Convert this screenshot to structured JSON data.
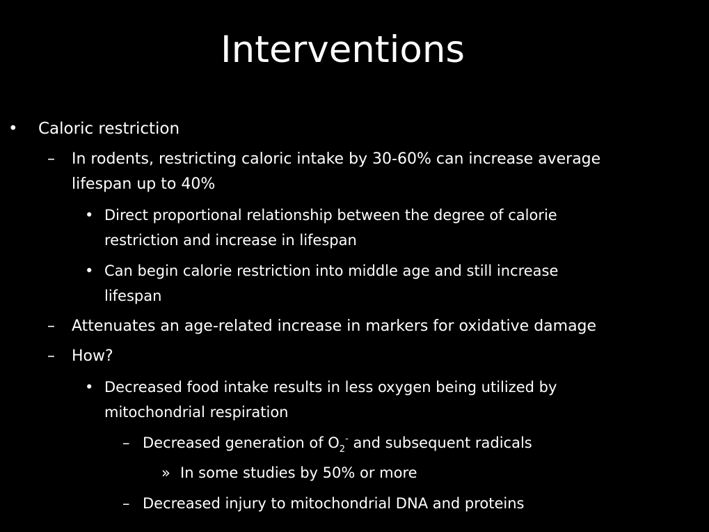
{
  "slide": {
    "title": "Interventions",
    "items": {
      "i0": {
        "marker": "•",
        "text": "Caloric restriction"
      },
      "i1": {
        "marker": "–",
        "line1": "In rodents, restricting caloric intake by 30-60% can increase average",
        "line2": "lifespan up to 40%"
      },
      "i2": {
        "marker": "•",
        "line1": "Direct proportional relationship between the degree of calorie",
        "line2": "restriction and increase in lifespan"
      },
      "i3": {
        "marker": "•",
        "line1": "Can begin calorie restriction into middle age and still increase",
        "line2": "lifespan"
      },
      "i4": {
        "marker": "–",
        "text": "Attenuates an age-related increase in markers for oxidative damage"
      },
      "i5": {
        "marker": "–",
        "text": "How?"
      },
      "i6": {
        "marker": "•",
        "line1": "Decreased food intake results in less oxygen being utilized by",
        "line2": "mitochondrial respiration"
      },
      "i7": {
        "marker": "–",
        "prefix": "Decreased  generation of O",
        "subscript": "2",
        "superscript": "-",
        "suffix": " and subsequent radicals"
      },
      "i8": {
        "marker": "»",
        "text": "In some studies by 50% or more"
      },
      "i9": {
        "marker": "–",
        "text": "Decreased injury to mitochondrial DNA and proteins"
      }
    }
  }
}
